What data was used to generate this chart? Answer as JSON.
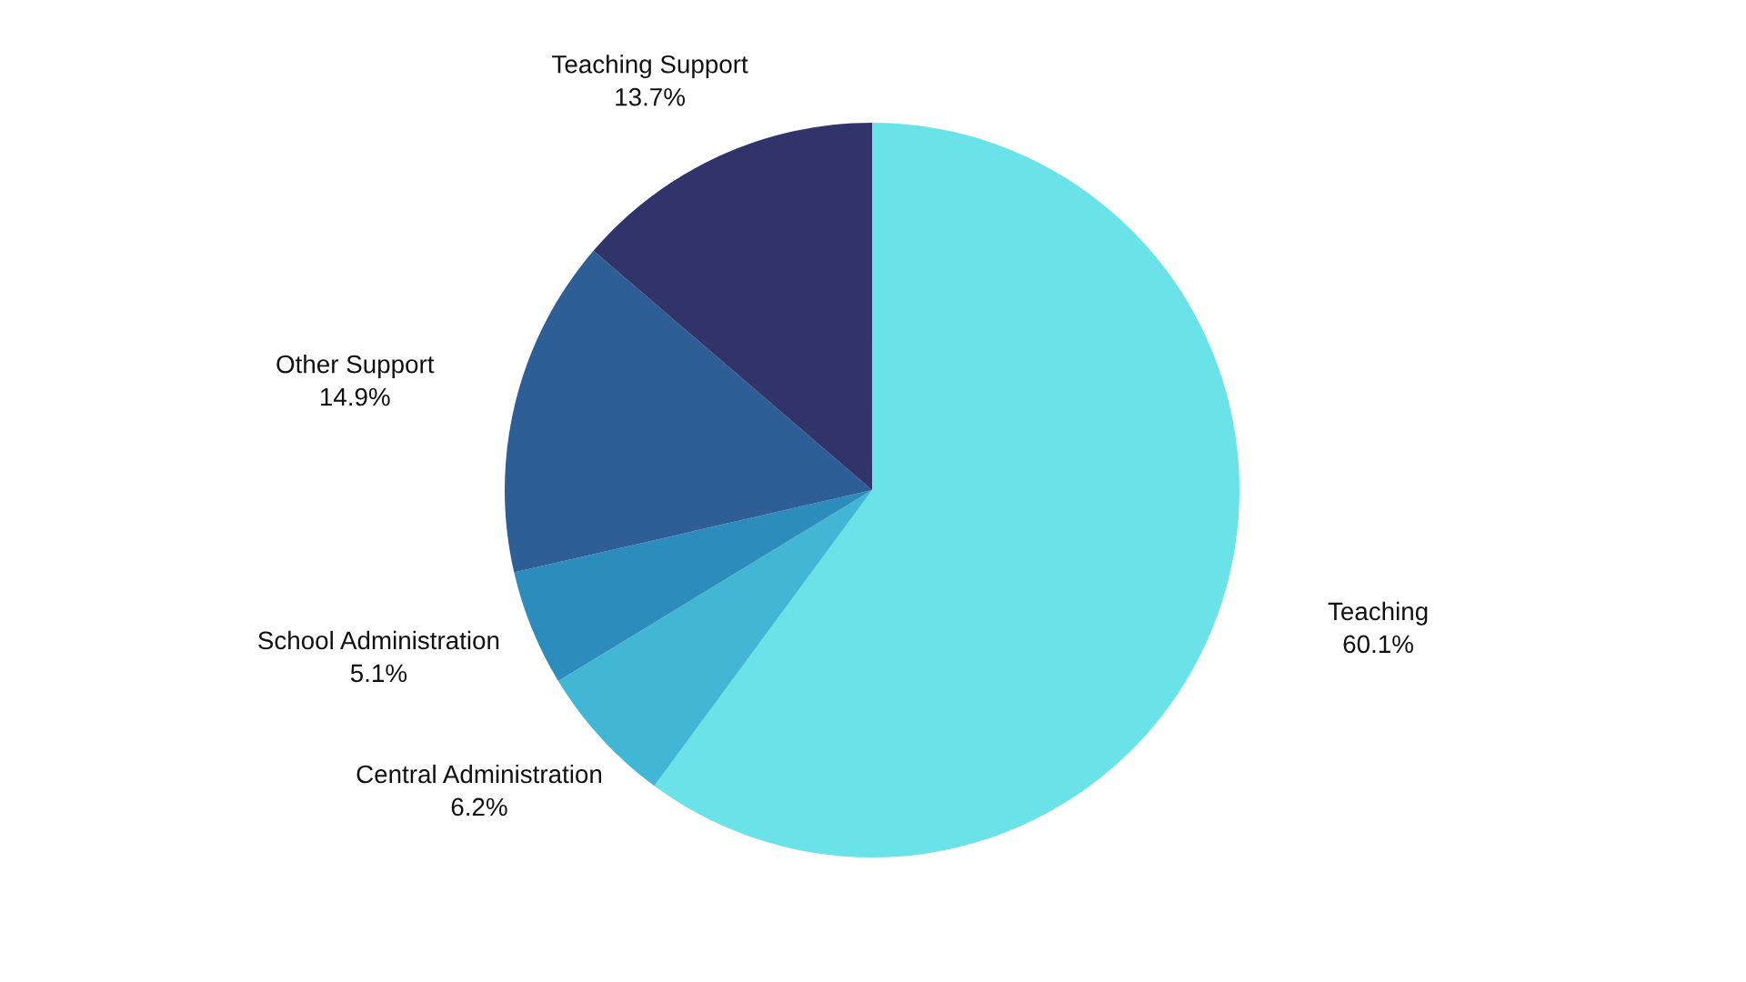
{
  "chart_data": {
    "type": "pie",
    "categories": [
      "Teaching",
      "Central Administration",
      "School Administration",
      "Other Support",
      "Teaching Support"
    ],
    "values": [
      60.1,
      6.2,
      5.1,
      14.9,
      13.7
    ],
    "value_labels": [
      "60.1%",
      "6.2%",
      "5.1%",
      "14.9%",
      "13.7%"
    ],
    "colors": [
      "#6ae3e8",
      "#42b6d5",
      "#2c8cbb",
      "#2e5e96",
      "#30346a"
    ]
  }
}
